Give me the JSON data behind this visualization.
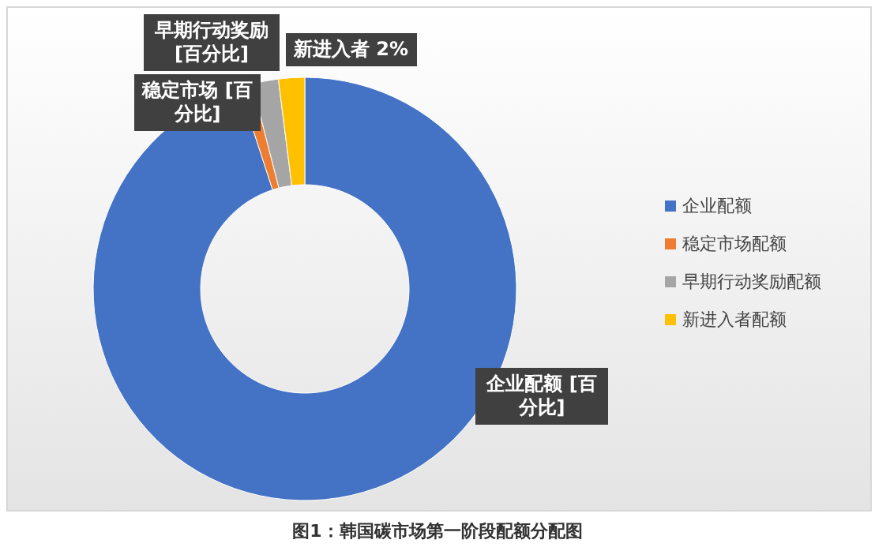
{
  "chart_data": {
    "type": "donut",
    "categories": [
      "企业配额",
      "稳定市场配额",
      "早期行动奖励配额",
      "新进入者配额"
    ],
    "values": [
      95,
      1,
      2,
      2
    ],
    "colors": [
      "#4472c4",
      "#ed7d31",
      "#a5a5a5",
      "#ffc000"
    ],
    "value_labels": [
      "企业配额 [百分比]",
      "稳定市场 [百分比]",
      "早期行动奖励 [百分比]",
      "新进入者 2%"
    ],
    "legend": "right",
    "annotations": [
      "图1：韩国碳市场第一阶段配额分配图"
    ]
  }
}
